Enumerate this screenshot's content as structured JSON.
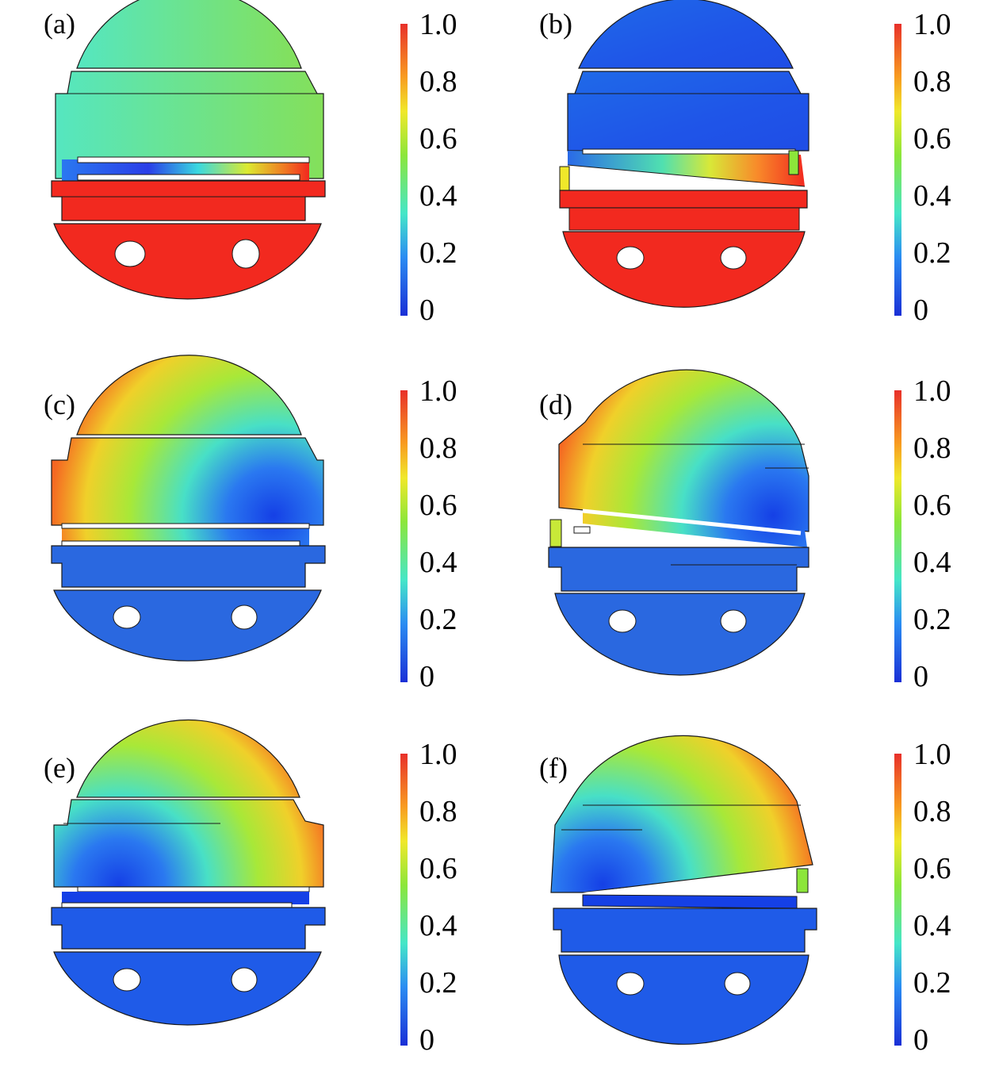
{
  "colorbar": {
    "ticks": [
      "1.0",
      "0.8",
      "0.6",
      "0.4",
      "0.2",
      "0"
    ],
    "colors": [
      "#1a2fd6",
      "#2a8cf2",
      "#45e6c8",
      "#8ce63a",
      "#f0e82a",
      "#f89a20",
      "#e8302a"
    ]
  },
  "colors": {
    "red": "#f2291f",
    "blue": "#1f5be8",
    "blue_light": "#2a68e0",
    "blue_deep": "#1540e6",
    "green": "#7fe87a",
    "teal": "#55e0b0",
    "yellow": "#dce83a",
    "orange": "#f78a2a",
    "outline": "#1a1a1a"
  },
  "panels": [
    {
      "label": "(a)",
      "top_fill": "teal-green",
      "bottom_fill": "red",
      "rotated": false
    },
    {
      "label": "(b)",
      "top_fill": "blue",
      "bottom_fill": "red",
      "rotated": true
    },
    {
      "label": "(c)",
      "top_fill": "red-to-blue",
      "bottom_fill": "blue",
      "rotated": false
    },
    {
      "label": "(d)",
      "top_fill": "red-to-blue",
      "bottom_fill": "blue",
      "rotated": true
    },
    {
      "label": "(e)",
      "top_fill": "blue-to-red",
      "bottom_fill": "blue",
      "rotated": false
    },
    {
      "label": "(f)",
      "top_fill": "blue-to-red",
      "bottom_fill": "blue",
      "rotated": true
    }
  ]
}
